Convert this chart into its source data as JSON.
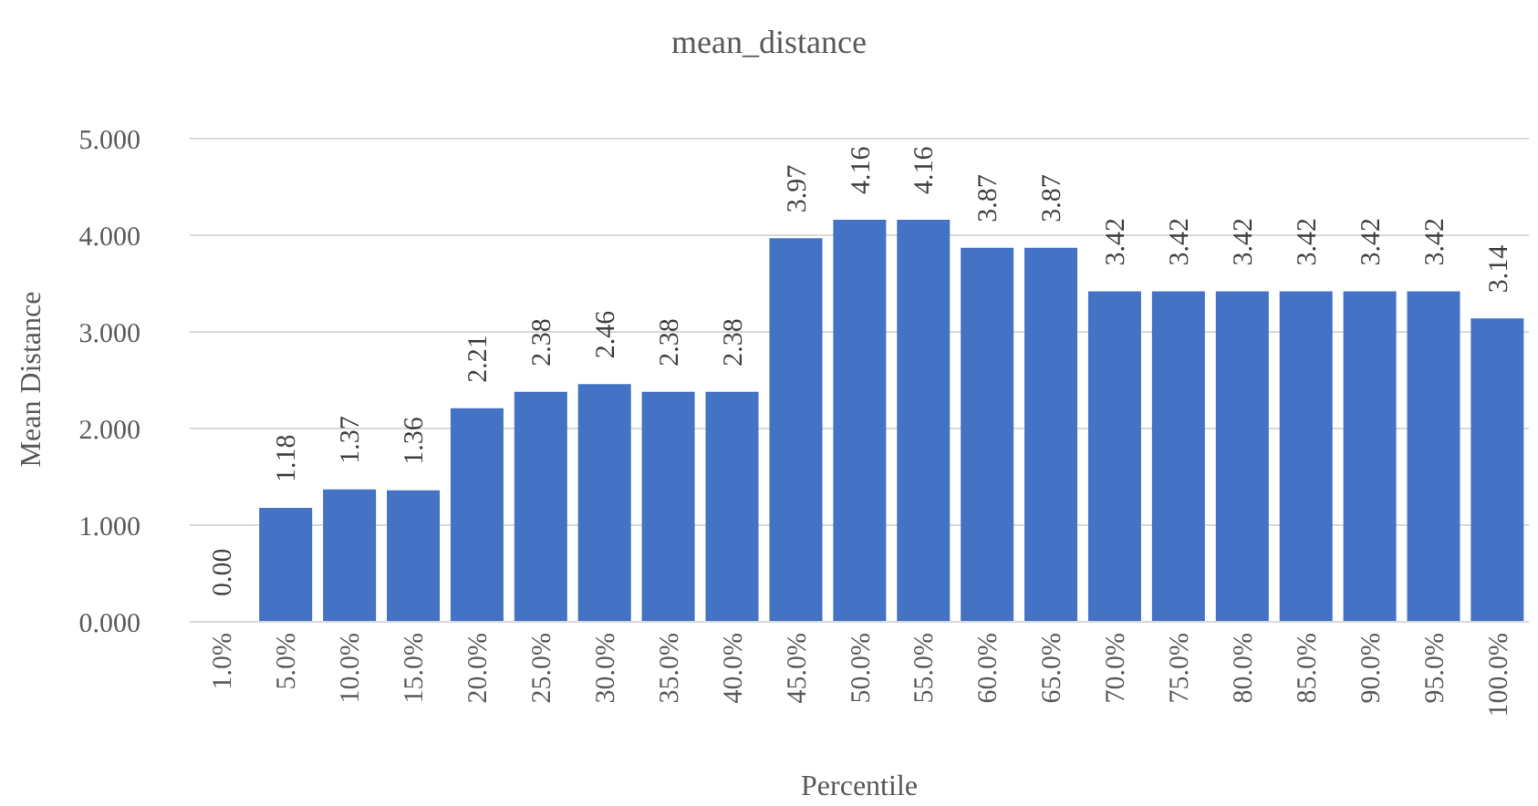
{
  "chart_data": {
    "type": "bar",
    "title": "mean_distance",
    "xlabel": "Percentile",
    "ylabel": "Mean Distance",
    "categories": [
      "1.0%",
      "5.0%",
      "10.0%",
      "15.0%",
      "20.0%",
      "25.0%",
      "30.0%",
      "35.0%",
      "40.0%",
      "45.0%",
      "50.0%",
      "55.0%",
      "60.0%",
      "65.0%",
      "70.0%",
      "75.0%",
      "80.0%",
      "85.0%",
      "90.0%",
      "95.0%",
      "100.0%"
    ],
    "values": [
      0,
      1.18,
      1.37,
      1.36,
      2.21,
      2.38,
      2.46,
      2.38,
      2.38,
      3.97,
      4.16,
      4.16,
      3.87,
      3.87,
      3.42,
      3.42,
      3.42,
      3.42,
      3.42,
      3.42,
      3.14
    ],
    "value_labels": [
      "0.00",
      "1.18",
      "1.37",
      "1.36",
      "2.21",
      "2.38",
      "2.46",
      "2.38",
      "2.38",
      "3.97",
      "4.16",
      "4.16",
      "3.87",
      "3.87",
      "3.42",
      "3.42",
      "3.42",
      "3.42",
      "3.42",
      "3.42",
      "3.14"
    ],
    "color": "#4472c4",
    "ylim": [
      0,
      5
    ],
    "yticks": [
      {
        "value": 0,
        "label": "0.000"
      },
      {
        "value": 1,
        "label": "1.000"
      },
      {
        "value": 2,
        "label": "2.000"
      },
      {
        "value": 3,
        "label": "3.000"
      },
      {
        "value": 4,
        "label": "4.000"
      },
      {
        "value": 5,
        "label": "5.000"
      }
    ],
    "grid": "y"
  }
}
